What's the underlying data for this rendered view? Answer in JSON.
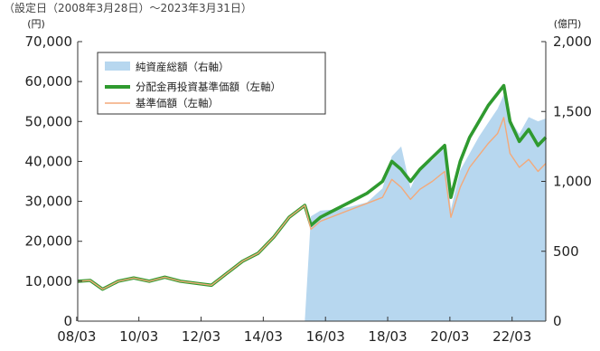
{
  "chart_data": {
    "type": "line",
    "header_text": "（設定日（2008年3月28日）～2023年3月31日）",
    "left_unit": "(円)",
    "right_unit": "(億円)",
    "x_tick_labels": [
      "08/03",
      "10/03",
      "12/03",
      "14/03",
      "16/03",
      "18/03",
      "20/03",
      "22/03"
    ],
    "x_range": [
      2008.2,
      2023.25
    ],
    "y_left": {
      "range": [
        0,
        70000
      ],
      "ticks": [
        0,
        10000,
        20000,
        30000,
        40000,
        50000,
        60000,
        70000
      ],
      "tick_labels": [
        "0",
        "10,000",
        "20,000",
        "30,000",
        "40,000",
        "50,000",
        "60,000",
        "70,000"
      ]
    },
    "y_right": {
      "range": [
        0,
        2000
      ],
      "ticks": [
        0,
        500,
        1000,
        1500,
        2000
      ],
      "tick_labels": [
        "0",
        "500",
        "1,000",
        "1,500",
        "2,000"
      ]
    },
    "legend_position": "top-left",
    "grid": false,
    "colors": {
      "net_assets": "#b7d7ef",
      "reinvested_nav": "#2f9a2f",
      "nav": "#f3a97a",
      "axis": "#333333"
    },
    "series": [
      {
        "name": "純資産総額（右軸）",
        "kind": "area",
        "axis": "right",
        "x": [
          2008.2,
          2015.0,
          2015.5,
          2015.7,
          2016.0,
          2016.5,
          2017.0,
          2017.5,
          2018.0,
          2018.3,
          2018.6,
          2018.9,
          2019.2,
          2019.6,
          2020.0,
          2020.2,
          2020.5,
          2020.8,
          2021.1,
          2021.4,
          2021.7,
          2021.9,
          2022.1,
          2022.4,
          2022.7,
          2023.0,
          2023.25
        ],
        "values": [
          0,
          0,
          0,
          750,
          790,
          800,
          820,
          850,
          950,
          1180,
          1250,
          950,
          1100,
          1150,
          1240,
          800,
          1080,
          1200,
          1320,
          1420,
          1520,
          1620,
          1440,
          1340,
          1460,
          1430,
          1450
        ]
      },
      {
        "name": "分配金再投資基準価額（左軸）",
        "kind": "line",
        "axis": "left",
        "x": [
          2008.2,
          2008.6,
          2009.0,
          2009.5,
          2010.0,
          2010.5,
          2011.0,
          2011.5,
          2012.0,
          2012.5,
          2013.0,
          2013.5,
          2014.0,
          2014.5,
          2015.0,
          2015.5,
          2015.7,
          2016.0,
          2016.5,
          2017.0,
          2017.5,
          2018.0,
          2018.3,
          2018.6,
          2018.9,
          2019.2,
          2019.6,
          2020.0,
          2020.2,
          2020.5,
          2020.8,
          2021.1,
          2021.4,
          2021.7,
          2021.9,
          2022.1,
          2022.4,
          2022.7,
          2023.0,
          2023.25
        ],
        "values": [
          10000,
          10200,
          8000,
          10000,
          10800,
          10000,
          11000,
          10000,
          9500,
          9000,
          12000,
          15000,
          17000,
          21000,
          26000,
          29000,
          24000,
          26000,
          28000,
          30000,
          32000,
          35000,
          40000,
          38000,
          35000,
          38000,
          41000,
          44000,
          31000,
          40000,
          46000,
          50000,
          54000,
          57000,
          59000,
          50000,
          45000,
          48000,
          44000,
          46000
        ]
      },
      {
        "name": "基準価額（左軸）",
        "kind": "line",
        "axis": "left",
        "x": [
          2008.2,
          2008.6,
          2009.0,
          2009.5,
          2010.0,
          2010.5,
          2011.0,
          2011.5,
          2012.0,
          2012.5,
          2013.0,
          2013.5,
          2014.0,
          2014.5,
          2015.0,
          2015.5,
          2015.7,
          2016.0,
          2016.5,
          2017.0,
          2017.5,
          2018.0,
          2018.3,
          2018.6,
          2018.9,
          2019.2,
          2019.6,
          2020.0,
          2020.2,
          2020.5,
          2020.8,
          2021.1,
          2021.4,
          2021.7,
          2021.9,
          2022.1,
          2022.4,
          2022.7,
          2023.0,
          2023.25
        ],
        "values": [
          10000,
          10200,
          8000,
          10000,
          10800,
          10000,
          11000,
          10000,
          9500,
          9000,
          12000,
          15000,
          17000,
          21000,
          26000,
          29000,
          23000,
          25000,
          26500,
          28000,
          29500,
          31000,
          35500,
          33500,
          30500,
          33000,
          35000,
          37500,
          26000,
          33500,
          38500,
          41500,
          44500,
          47000,
          51000,
          42000,
          38500,
          40500,
          37500,
          39500
        ]
      }
    ]
  }
}
